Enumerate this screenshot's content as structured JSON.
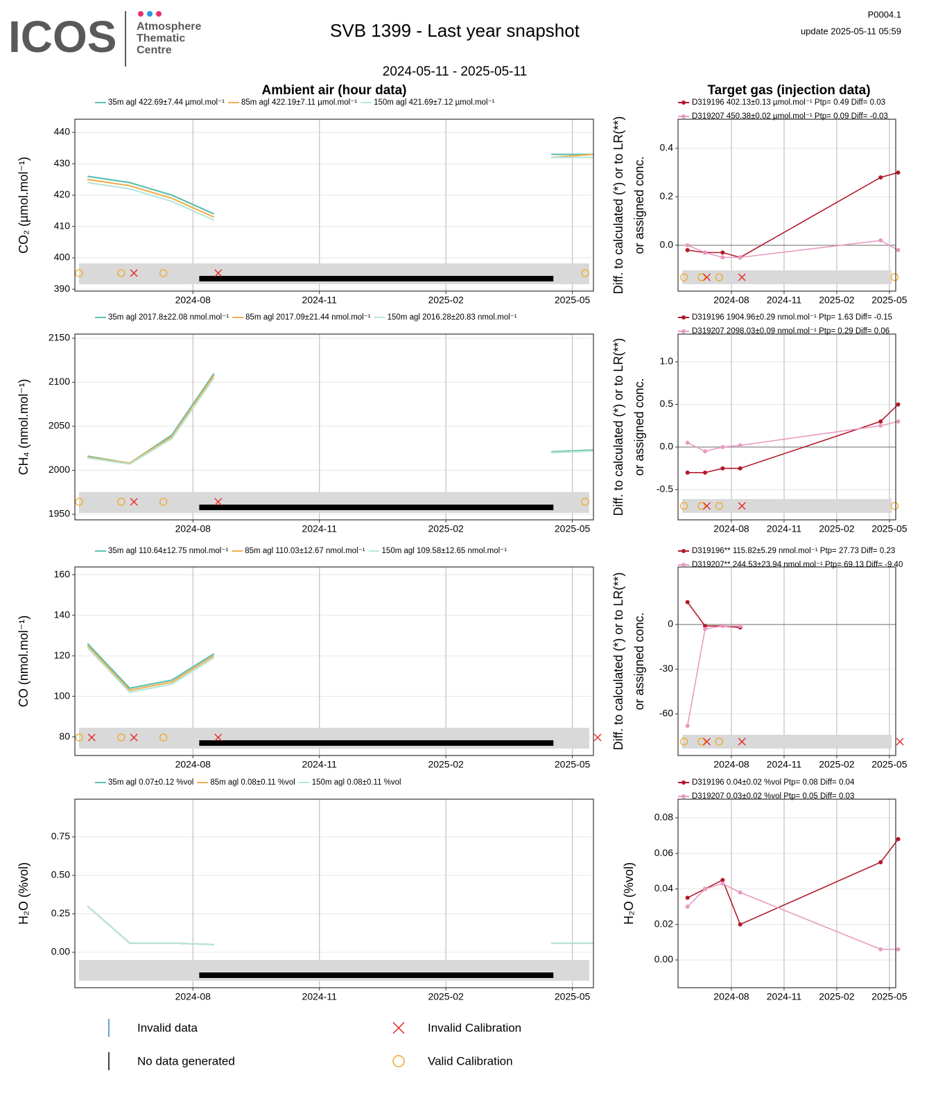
{
  "header": {
    "logo": "ICOS",
    "logo_sub": [
      "Atmosphere",
      "Thematic",
      "Centre"
    ],
    "title": "SVB 1399 - Last year snapshot",
    "period": "2024-05-11 - 2025-05-11",
    "code": "P0004.1",
    "update": "update  2025-05-11 05:59"
  },
  "section_titles": [
    "Ambient air (hour data)",
    "Target gas (injection data)"
  ],
  "legend": {
    "items": [
      "Invalid data",
      "No data generated",
      "Invalid Calibration",
      "Valid Calibration"
    ]
  },
  "chart_data": [
    {
      "type": "line",
      "y_label": [
        "CO₂ (µmol.mol⁻¹)"
      ],
      "x": [
        "2024-05",
        "2024-06",
        "2024-07",
        "2024-08",
        "2024-09",
        "2024-10",
        "2024-11",
        "2024-12",
        "2025-01",
        "2025-02",
        "2025-03",
        "2025-04",
        "2025-05"
      ],
      "xlim": [
        "2024-05",
        "2025-05"
      ],
      "xticks": [
        "2024-08",
        "2024-11",
        "2025-02",
        "2025-05"
      ],
      "ylim": [
        389.4,
        444.2
      ],
      "yticks": [
        390,
        400,
        410,
        420,
        430,
        440
      ],
      "grid": true,
      "series": [
        {
          "name": "35m agl 422.69±7.44 µmol.mol⁻¹",
          "color": "#5cbfb0",
          "values": [
            426,
            424,
            420,
            414,
            null,
            null,
            null,
            null,
            null,
            null,
            null,
            433,
            433
          ]
        },
        {
          "name": "85m agl 422.19±7.11 µmol.mol⁻¹",
          "color": "#f0b050",
          "values": [
            425,
            423,
            419,
            413,
            null,
            null,
            null,
            null,
            null,
            null,
            null,
            432,
            433
          ]
        },
        {
          "name": "150m agl 421.69±7.12 µmol.mol⁻¹",
          "color": "#b8e6dc",
          "values": [
            424,
            422,
            418,
            412,
            null,
            null,
            null,
            null,
            null,
            null,
            null,
            432,
            432
          ]
        }
      ],
      "flags": {
        "no_data": [
          "2024-08",
          "2025-04"
        ],
        "valid_calibration": [
          "2024-05",
          "2024-06",
          "2024-07",
          "2025-05"
        ],
        "invalid_calibration": [
          "2024-06",
          "2024-08"
        ]
      }
    },
    {
      "type": "line",
      "markers": true,
      "reference_line": 0,
      "y_label": [
        "Diff. to calculated (*) or to LR(**)",
        "or assigned conc."
      ],
      "x": [
        "2024-05",
        "2024-06",
        "2024-07",
        "2024-08",
        "2025-04",
        "2025-05"
      ],
      "xlim": [
        "2024-05",
        "2025-05"
      ],
      "xticks": [
        "2024-08",
        "2024-11",
        "2025-02",
        "2025-05"
      ],
      "ylim": [
        -0.189,
        0.52
      ],
      "yticks": [
        {
          "value": 0,
          "label": "0.0"
        },
        {
          "value": 0.2,
          "label": "0.2"
        },
        {
          "value": 0.4,
          "label": "0.4"
        }
      ],
      "grid": true,
      "series": [
        {
          "name": "D319196 402.13±0.13 µmol.mol⁻¹ Ptp= 0.49 Diff= 0.03",
          "color": "#b2182b",
          "values": [
            -0.02,
            -0.03,
            -0.03,
            -0.05,
            0.28,
            0.3
          ]
        },
        {
          "name": "D319207 450.38±0.02 µmol.mol⁻¹ Ptp= 0.09 Diff= -0.03",
          "color": "#e89ac0",
          "values": [
            0.0,
            -0.03,
            -0.05,
            -0.05,
            0.02,
            -0.02
          ]
        }
      ],
      "flags": {
        "valid_calibration": [
          "2024-05",
          "2024-06",
          "2024-07",
          "2025-05"
        ],
        "invalid_calibration": [
          "2024-06",
          "2024-08"
        ]
      }
    },
    {
      "type": "line",
      "y_label": [
        "CH₄ (nmol.mol⁻¹)"
      ],
      "x": [
        "2024-05",
        "2024-06",
        "2024-07",
        "2024-08",
        "2024-09",
        "2024-10",
        "2024-11",
        "2024-12",
        "2025-01",
        "2025-02",
        "2025-03",
        "2025-04",
        "2025-05"
      ],
      "xlim": [
        "2024-05",
        "2025-05"
      ],
      "xticks": [
        "2024-08",
        "2024-11",
        "2025-02",
        "2025-05"
      ],
      "ylim": [
        1943.7,
        2154.7
      ],
      "yticks": [
        1950,
        2000,
        2050,
        2100,
        2150
      ],
      "grid": true,
      "series": [
        {
          "name": "35m agl 2017.8±22.08 nmol.mol⁻¹",
          "color": "#5cbfb0",
          "values": [
            2016,
            2008,
            2040,
            2110,
            null,
            null,
            null,
            null,
            null,
            null,
            null,
            2021,
            2023
          ]
        },
        {
          "name": "85m agl 2017.09±21.44 nmol.mol⁻¹",
          "color": "#f0b050",
          "values": [
            2015,
            2008,
            2038,
            2108,
            null,
            null,
            null,
            null,
            null,
            null,
            null,
            2020,
            2022
          ]
        },
        {
          "name": "150m agl 2016.28±20.83 nmol.mol⁻¹",
          "color": "#b8e6dc",
          "values": [
            2014,
            2007,
            2036,
            2105,
            null,
            null,
            null,
            null,
            null,
            null,
            null,
            2020,
            2022
          ]
        }
      ],
      "flags": {
        "no_data": [
          "2024-08",
          "2025-04"
        ],
        "valid_calibration": [
          "2024-05",
          "2024-06",
          "2024-07",
          "2025-05"
        ],
        "invalid_calibration": [
          "2024-06",
          "2024-08"
        ]
      }
    },
    {
      "type": "line",
      "markers": true,
      "reference_line": 0,
      "y_label": [
        "Diff. to calculated (*) or to LR(**)",
        "or assigned conc."
      ],
      "x": [
        "2024-05",
        "2024-06",
        "2024-07",
        "2024-08",
        "2025-04",
        "2025-05"
      ],
      "xlim": [
        "2024-05",
        "2025-05"
      ],
      "xticks": [
        "2024-08",
        "2024-11",
        "2025-02",
        "2025-05"
      ],
      "ylim": [
        -0.854,
        1.325
      ],
      "yticks": [
        -0.5,
        {
          "value": 0,
          "label": "0.0"
        },
        0.5,
        {
          "value": 1,
          "label": "1.0"
        }
      ],
      "grid": true,
      "series": [
        {
          "name": "D319196 1904.96±0.29 nmol.mol⁻¹ Ptp= 1.63 Diff= -0.15",
          "color": "#b2182b",
          "values": [
            -0.3,
            -0.3,
            -0.25,
            -0.25,
            0.3,
            0.5
          ]
        },
        {
          "name": "D319207 2098.03±0.09 nmol.mol⁻¹ Ptp= 0.29 Diff= 0.06",
          "color": "#e89ac0",
          "values": [
            0.05,
            -0.05,
            0.0,
            0.02,
            0.25,
            0.3
          ]
        }
      ],
      "flags": {
        "valid_calibration": [
          "2024-05",
          "2024-06",
          "2024-07",
          "2025-05"
        ],
        "invalid_calibration": [
          "2024-06",
          "2024-08"
        ]
      }
    },
    {
      "type": "line",
      "y_label": [
        "CO (nmol.mol⁻¹)"
      ],
      "x": [
        "2024-05",
        "2024-06",
        "2024-07",
        "2024-08",
        "2024-09",
        "2024-10",
        "2024-11",
        "2024-12",
        "2025-01",
        "2025-02",
        "2025-03",
        "2025-04",
        "2025-05"
      ],
      "xlim": [
        "2024-05",
        "2025-05"
      ],
      "xticks": [
        "2024-08",
        "2024-11",
        "2025-02",
        "2025-05"
      ],
      "ylim": [
        70.8,
        163.8
      ],
      "yticks": [
        80,
        100,
        120,
        140,
        160
      ],
      "grid": true,
      "series": [
        {
          "name": "35m agl 110.64±12.75 nmol.mol⁻¹",
          "color": "#5cbfb0",
          "values": [
            126,
            104,
            108,
            121,
            null,
            null,
            null,
            null,
            null,
            null,
            null,
            null,
            null
          ]
        },
        {
          "name": "85m agl 110.03±12.67 nmol.mol⁻¹",
          "color": "#f0b050",
          "values": [
            125,
            103,
            107,
            120,
            null,
            null,
            null,
            null,
            null,
            null,
            null,
            null,
            null
          ]
        },
        {
          "name": "150m agl 109.58±12.65 nmol.mol⁻¹",
          "color": "#b8e6dc",
          "values": [
            124,
            102,
            106,
            119,
            null,
            null,
            null,
            null,
            null,
            null,
            null,
            null,
            null
          ]
        }
      ],
      "flags": {
        "no_data": [
          "2024-08",
          "2025-04"
        ],
        "valid_calibration": [
          "2024-05",
          "2024-06",
          "2024-07"
        ],
        "invalid_calibration": [
          "2024-05",
          "2024-06",
          "2024-08",
          "2025-05"
        ]
      }
    },
    {
      "type": "line",
      "markers": true,
      "reference_line": 0,
      "y_label": [
        "Diff. to calculated (*) or to LR(**)",
        "or assigned conc."
      ],
      "x": [
        "2024-05",
        "2024-06",
        "2024-07",
        "2024-08"
      ],
      "xlim": [
        "2024-05",
        "2025-05"
      ],
      "xticks": [
        "2024-08",
        "2024-11",
        "2025-02",
        "2025-05"
      ],
      "ylim": [
        -87.9,
        38.6
      ],
      "yticks": [
        -60,
        -30,
        0
      ],
      "grid": true,
      "series": [
        {
          "name": "D319196** 115.82±5.29 nmol.mol⁻¹ Ptp= 27.73 Diff= 0.23",
          "color": "#b2182b",
          "values": [
            15,
            -1,
            -1,
            -2
          ]
        },
        {
          "name": "D319207** 244.53±23.94 nmol.mol⁻¹ Ptp= 69.13 Diff= -9.40",
          "color": "#e89ac0",
          "values": [
            -68,
            -3,
            -1,
            -1
          ]
        }
      ],
      "flags": {
        "valid_calibration": [
          "2024-05",
          "2024-06",
          "2024-07"
        ],
        "invalid_calibration": [
          "2024-06",
          "2024-08",
          "2025-05"
        ]
      }
    },
    {
      "type": "line",
      "y_label": [
        "H₂O (%vol)"
      ],
      "x": [
        "2024-05",
        "2024-06",
        "2024-07",
        "2024-08",
        "2024-09",
        "2024-10",
        "2024-11",
        "2024-12",
        "2025-01",
        "2025-02",
        "2025-03",
        "2025-04",
        "2025-05"
      ],
      "xlim": [
        "2024-05",
        "2025-05"
      ],
      "xticks": [
        "2024-08",
        "2024-11",
        "2025-02",
        "2025-05"
      ],
      "ylim": [
        -0.23,
        0.995
      ],
      "yticks": [
        {
          "value": 0,
          "label": "0.00"
        },
        {
          "value": 0.25,
          "label": "0.25"
        },
        {
          "value": 0.5,
          "label": "0.50"
        },
        {
          "value": 0.75,
          "label": "0.75"
        }
      ],
      "grid": true,
      "series": [
        {
          "name": "35m agl 0.07±0.12 %vol",
          "color": "#5cbfb0",
          "values": [
            0.3,
            0.06,
            0.06,
            0.05,
            null,
            null,
            null,
            null,
            null,
            null,
            null,
            0.06,
            0.06
          ]
        },
        {
          "name": "85m agl 0.08±0.11 %vol",
          "color": "#f0b050",
          "values": [
            0.3,
            0.06,
            0.06,
            0.05,
            null,
            null,
            null,
            null,
            null,
            null,
            null,
            0.06,
            0.06
          ]
        },
        {
          "name": "150m agl 0.08±0.11 %vol",
          "color": "#b8e6dc",
          "values": [
            0.3,
            0.06,
            0.06,
            0.05,
            null,
            null,
            null,
            null,
            null,
            null,
            null,
            0.06,
            0.06
          ]
        }
      ],
      "flags": {
        "no_data": [
          "2024-08",
          "2025-04"
        ]
      }
    },
    {
      "type": "line",
      "markers": true,
      "y_label": [
        "H₂O (%vol)"
      ],
      "x": [
        "2024-05",
        "2024-06",
        "2024-07",
        "2024-08",
        "2025-04",
        "2025-05"
      ],
      "xlim": [
        "2024-05",
        "2025-05"
      ],
      "xticks": [
        "2024-08",
        "2024-11",
        "2025-02",
        "2025-05"
      ],
      "ylim": [
        -0.0156,
        0.0905
      ],
      "yticks": [
        {
          "value": 0,
          "label": "0.00"
        },
        {
          "value": 0.02,
          "label": "0.02"
        },
        {
          "value": 0.04,
          "label": "0.04"
        },
        {
          "value": 0.06,
          "label": "0.06"
        },
        {
          "value": 0.08,
          "label": "0.08"
        }
      ],
      "grid": true,
      "series": [
        {
          "name": "D319196 0.04±0.02 %vol Ptp= 0.08 Diff= 0.04",
          "color": "#b2182b",
          "values": [
            0.035,
            0.04,
            0.045,
            0.02,
            0.055,
            0.068
          ]
        },
        {
          "name": "D319207 0.03±0.02 %vol Ptp= 0.05 Diff= 0.03",
          "color": "#e89ac0",
          "values": [
            0.03,
            0.04,
            0.043,
            0.038,
            0.006,
            0.006
          ]
        }
      ]
    }
  ]
}
